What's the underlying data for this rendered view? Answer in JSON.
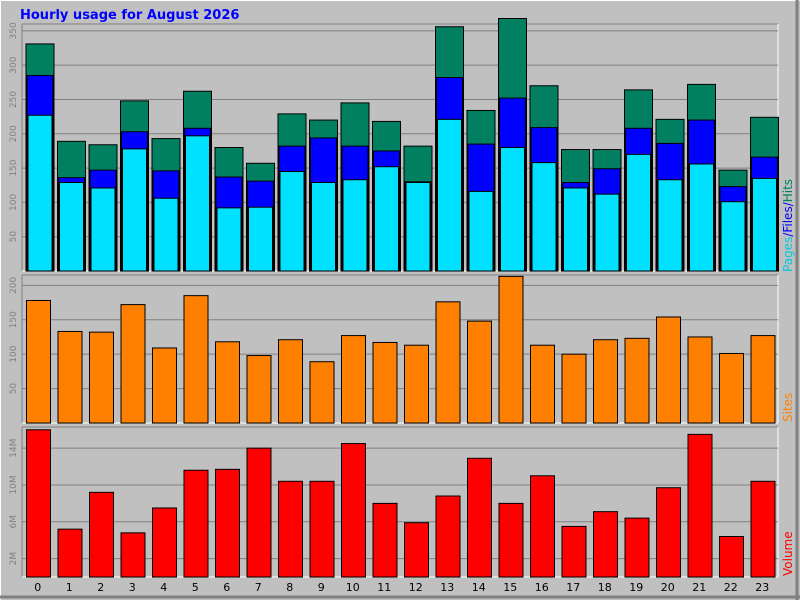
{
  "chart_data": [
    {
      "type": "bar",
      "title": "Hourly usage for August 2026",
      "categories": [
        "0",
        "1",
        "2",
        "3",
        "4",
        "5",
        "6",
        "7",
        "8",
        "9",
        "10",
        "11",
        "12",
        "13",
        "14",
        "15",
        "16",
        "17",
        "18",
        "19",
        "20",
        "21",
        "22",
        "23"
      ],
      "ylim": [
        0,
        360
      ],
      "yticks": [
        "50",
        "100",
        "150",
        "200",
        "250",
        "300",
        "350"
      ],
      "ytick_values": [
        50,
        100,
        150,
        200,
        250,
        300,
        350
      ],
      "series": [
        {
          "name": "Hits",
          "color": "#008060",
          "values": [
            331,
            189,
            184,
            248,
            193,
            262,
            180,
            157,
            229,
            220,
            245,
            218,
            182,
            356,
            234,
            368,
            270,
            177,
            177,
            264,
            221,
            272,
            147,
            224
          ]
        },
        {
          "name": "Files",
          "color": "#0000ff",
          "values": [
            285,
            136,
            147,
            203,
            146,
            208,
            137,
            131,
            182,
            194,
            182,
            175,
            130,
            282,
            185,
            252,
            209,
            129,
            149,
            208,
            186,
            220,
            123,
            166
          ]
        },
        {
          "name": "Pages",
          "color": "#00e0ff",
          "values": [
            227,
            129,
            121,
            178,
            106,
            197,
            92,
            93,
            145,
            129,
            133,
            152,
            129,
            221,
            116,
            180,
            158,
            121,
            112,
            170,
            133,
            156,
            101,
            135
          ]
        }
      ],
      "legend": {
        "labels": [
          "Pages",
          "Files",
          "Hits"
        ],
        "separator": "/",
        "placement": "right"
      },
      "grid": true
    },
    {
      "type": "bar",
      "categories": [
        "0",
        "1",
        "2",
        "3",
        "4",
        "5",
        "6",
        "7",
        "8",
        "9",
        "10",
        "11",
        "12",
        "13",
        "14",
        "15",
        "16",
        "17",
        "18",
        "19",
        "20",
        "21",
        "22",
        "23"
      ],
      "ylim": [
        0,
        215
      ],
      "yticks": [
        "50",
        "100",
        "150",
        "200"
      ],
      "ytick_values": [
        50,
        100,
        150,
        200
      ],
      "series": [
        {
          "name": "Sites",
          "color": "#ff8000",
          "values": [
            178,
            133,
            132,
            172,
            109,
            185,
            118,
            98,
            121,
            89,
            127,
            117,
            113,
            176,
            148,
            213,
            113,
            100,
            121,
            123,
            154,
            125,
            101,
            127
          ]
        }
      ],
      "legend": {
        "labels": [
          "Sites"
        ],
        "placement": "right"
      },
      "grid": true
    },
    {
      "type": "bar",
      "categories": [
        "0",
        "1",
        "2",
        "3",
        "4",
        "5",
        "6",
        "7",
        "8",
        "9",
        "10",
        "11",
        "12",
        "13",
        "14",
        "15",
        "16",
        "17",
        "18",
        "19",
        "20",
        "21",
        "22",
        "23"
      ],
      "ylim": [
        0,
        16.3
      ],
      "yticks": [
        "2M",
        "6M",
        "10M",
        "14M"
      ],
      "ytick_values": [
        2,
        6,
        10,
        14
      ],
      "series": [
        {
          "name": "Volume",
          "color": "#ff0000",
          "values": [
            16.0,
            5.2,
            9.2,
            4.8,
            7.5,
            11.6,
            11.7,
            14.0,
            10.4,
            10.4,
            14.5,
            8.0,
            5.9,
            8.8,
            12.9,
            8.0,
            11.0,
            5.5,
            7.1,
            6.4,
            9.7,
            15.5,
            4.4,
            10.4
          ]
        }
      ],
      "legend": {
        "labels": [
          "Volume"
        ],
        "placement": "right"
      },
      "grid": true
    }
  ]
}
